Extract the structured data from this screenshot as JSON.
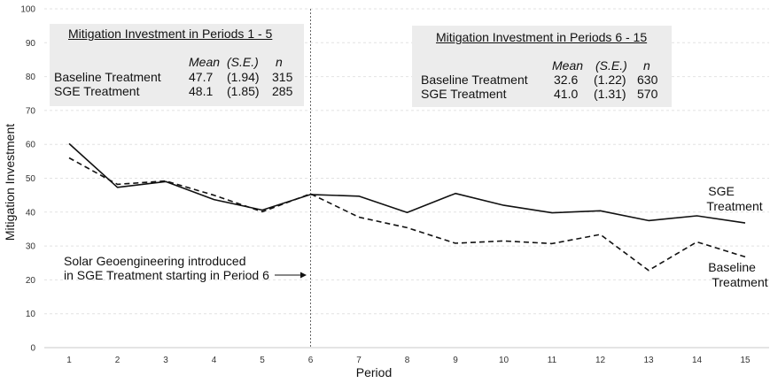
{
  "chart_data": {
    "type": "line",
    "xlabel": "Period",
    "ylabel": "Mitigation Investment",
    "x": [
      1,
      2,
      3,
      4,
      5,
      6,
      7,
      8,
      9,
      10,
      11,
      12,
      13,
      14,
      15
    ],
    "ylim": [
      0,
      100
    ],
    "yticks": [
      0,
      10,
      20,
      30,
      40,
      50,
      60,
      70,
      80,
      90,
      100
    ],
    "grid": true,
    "series": [
      {
        "name": "SGE Treatment",
        "style": "solid",
        "color": "#111111",
        "values": [
          60.2,
          47.3,
          49.0,
          43.7,
          40.6,
          45.2,
          44.7,
          39.9,
          45.5,
          42.0,
          39.8,
          40.4,
          37.5,
          38.9,
          36.8
        ]
      },
      {
        "name": "Baseline Treatment",
        "style": "dashed",
        "color": "#111111",
        "values": [
          56.0,
          48.2,
          49.2,
          45.0,
          40.1,
          45.4,
          38.5,
          35.4,
          30.8,
          31.5,
          30.7,
          33.4,
          22.8,
          31.2,
          26.8
        ]
      }
    ],
    "series_labels": {
      "sge": [
        "SGE",
        "Treatment"
      ],
      "baseline": [
        "Baseline",
        "Treatment"
      ]
    },
    "vline": {
      "x": 6
    },
    "annotation": {
      "lines": [
        "Solar Geoengineering introduced",
        "in SGE Treatment starting in Period 6"
      ],
      "arrow_to_x": 6,
      "arrow_y": 22
    },
    "tables": [
      {
        "title": "Mitigation Investment in Periods 1 - 5",
        "headers": [
          "Mean",
          "(S.E.)",
          "n"
        ],
        "rows": [
          {
            "label": "Baseline Treatment",
            "mean": "47.7",
            "se": "(1.94)",
            "n": "315"
          },
          {
            "label": "SGE Treatment",
            "mean": "48.1",
            "se": "(1.85)",
            "n": "285"
          }
        ]
      },
      {
        "title": "Mitigation Investment in Periods 6 - 15",
        "headers": [
          "Mean",
          "(S.E.)",
          "n"
        ],
        "rows": [
          {
            "label": "Baseline Treatment",
            "mean": "32.6",
            "se": "(1.22)",
            "n": "630"
          },
          {
            "label": "SGE Treatment",
            "mean": "41.0",
            "se": "(1.31)",
            "n": "570"
          }
        ]
      }
    ]
  }
}
